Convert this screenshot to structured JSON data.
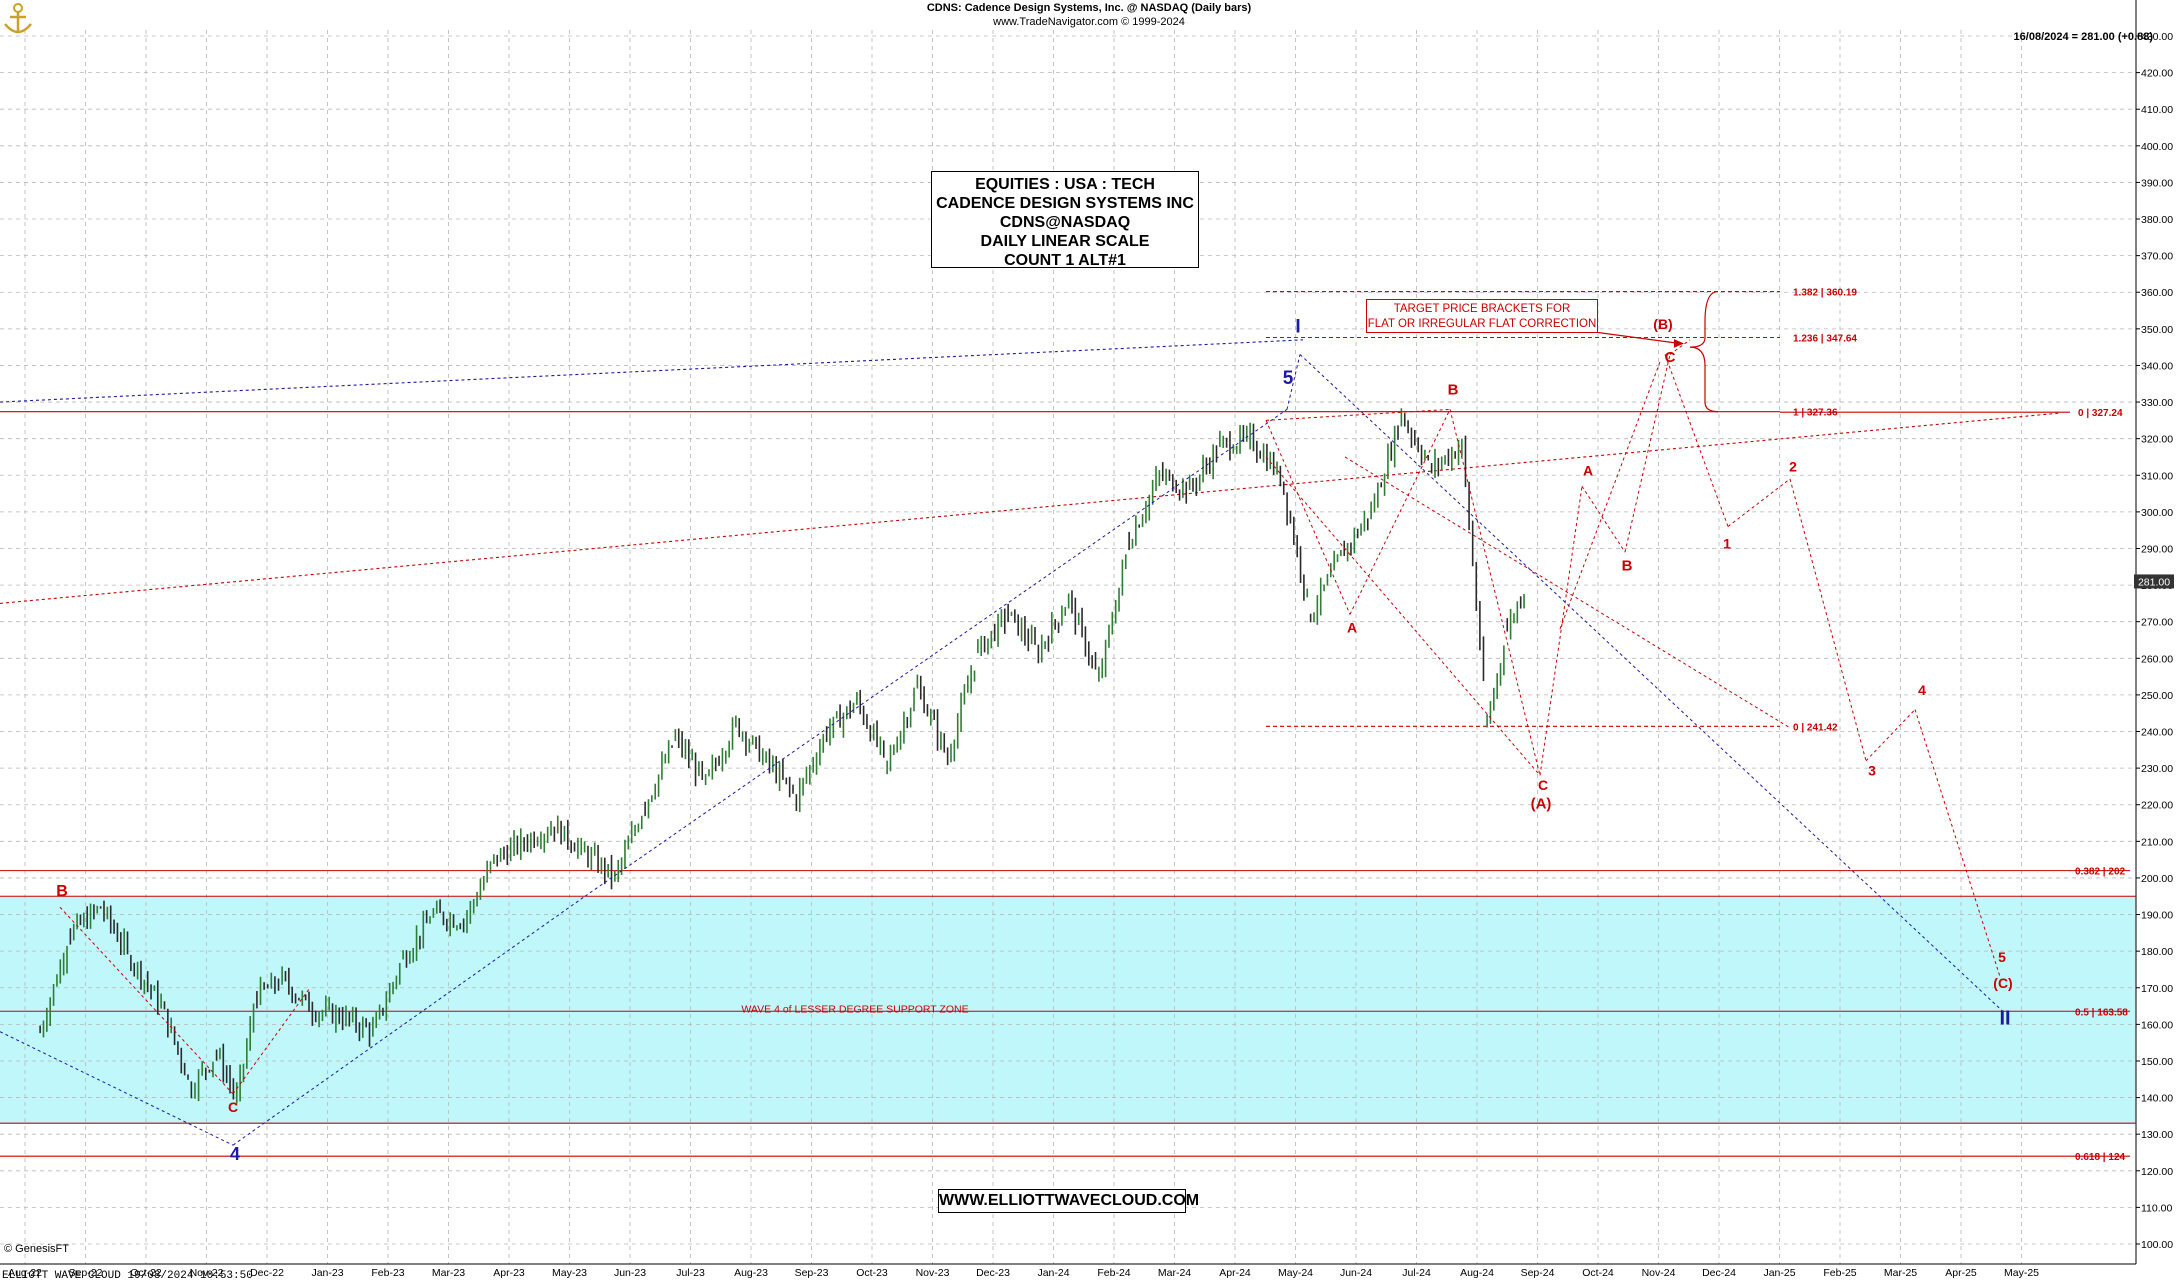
{
  "header": {
    "symbol_line": "CDNS:  Cadence Design Systems, Inc. @ NASDAQ  (Daily bars)",
    "source_line": "www.TradeNavigator.com © 1999-2024"
  },
  "last_price_label": "16/08/2024 = 281.00 (+0.88)",
  "info_box": {
    "line1": "EQUITIES : USA : TECH",
    "line2": "CADENCE DESIGN SYSTEMS INC",
    "line3": "CDNS@NASDAQ",
    "line4": "DAILY LINEAR SCALE",
    "line5": "COUNT 1 ALT#1"
  },
  "target_box": {
    "line1": "TARGET PRICE BRACKETS FOR",
    "line2": "FLAT OR IRREGULAR FLAT CORRECTION"
  },
  "website": "WWW.ELLIOTTWAVECLOUD.COM",
  "footer": "ELLIOTT WAVE CLOUD  19/08/2024 10:53:50",
  "genesis": "© GenesisFT",
  "colors": {
    "zone_fill": "#bff7fb",
    "red": "#cc0000",
    "blue": "#1a1aa6",
    "grid": "#b8b8b8",
    "bull_bar": "#2e7d32",
    "bear_bar": "#2a2a2a"
  },
  "chart_data": {
    "type": "line",
    "title": "CDNS:  Cadence Design Systems, Inc. @ NASDAQ  (Daily bars)",
    "xlabel": "",
    "ylabel": "",
    "ylim": [
      100,
      430
    ],
    "y_ticks": [
      "100.00",
      "110.00",
      "120.00",
      "130.00",
      "140.00",
      "150.00",
      "160.00",
      "170.00",
      "180.00",
      "190.00",
      "200.00",
      "210.00",
      "220.00",
      "230.00",
      "240.00",
      "250.00",
      "260.00",
      "270.00",
      "280.00",
      "290.00",
      "300.00",
      "310.00",
      "320.00",
      "330.00",
      "340.00",
      "350.00",
      "360.00",
      "370.00",
      "380.00",
      "390.00",
      "400.00",
      "410.00",
      "420.00",
      "430.00"
    ],
    "x_ticks": [
      "Aug-22",
      "Sep-22",
      "Oct-22",
      "Nov-22",
      "Dec-22",
      "Jan-23",
      "Feb-23",
      "Mar-23",
      "Apr-23",
      "May-23",
      "Jun-23",
      "Jul-23",
      "Aug-23",
      "Sep-23",
      "Oct-23",
      "Nov-23",
      "Dec-23",
      "Jan-24",
      "Feb-24",
      "Mar-24",
      "Apr-24",
      "May-24",
      "Jun-24",
      "Jul-24",
      "Aug-24",
      "Sep-24",
      "Oct-24",
      "Nov-24",
      "Dec-24",
      "Jan-25",
      "Feb-25",
      "Mar-25",
      "Apr-25",
      "May-25"
    ],
    "grid": true,
    "last_price_tag": "281.00",
    "price_path": [
      [
        "Aug-22",
        158
      ],
      [
        "Aug-22",
        185
      ],
      [
        "Sep-22",
        192
      ],
      [
        "Sep-22",
        178
      ],
      [
        "Oct-22",
        165
      ],
      [
        "Oct-22",
        143
      ],
      [
        "Nov-22",
        152
      ],
      [
        "Nov-22",
        140
      ],
      [
        "Nov-22",
        168
      ],
      [
        "Dec-22",
        172
      ],
      [
        "Dec-22",
        164
      ],
      [
        "Jan-23",
        162
      ],
      [
        "Jan-23",
        158
      ],
      [
        "Feb-23",
        178
      ],
      [
        "Feb-23",
        190
      ],
      [
        "Mar-23",
        188
      ],
      [
        "Mar-23",
        205
      ],
      [
        "Apr-23",
        210
      ],
      [
        "Apr-23",
        214
      ],
      [
        "May-23",
        207
      ],
      [
        "May-23",
        200
      ],
      [
        "Jun-23",
        220
      ],
      [
        "Jun-23",
        238
      ],
      [
        "Jul-23",
        226
      ],
      [
        "Jul-23",
        242
      ],
      [
        "Aug-23",
        232
      ],
      [
        "Aug-23",
        222
      ],
      [
        "Sep-23",
        240
      ],
      [
        "Sep-23",
        248
      ],
      [
        "Oct-23",
        231
      ],
      [
        "Oct-23",
        252
      ],
      [
        "Nov-23",
        233
      ],
      [
        "Nov-23",
        262
      ],
      [
        "Dec-23",
        272
      ],
      [
        "Dec-23",
        262
      ],
      [
        "Jan-24",
        276
      ],
      [
        "Jan-24",
        254
      ],
      [
        "Feb-24",
        292
      ],
      [
        "Feb-24",
        310
      ],
      [
        "Mar-24",
        306
      ],
      [
        "Mar-24",
        318
      ],
      [
        "Apr-24",
        320
      ],
      [
        "Apr-24",
        310
      ],
      [
        "May-24",
        272
      ],
      [
        "May-24",
        288
      ],
      [
        "Jun-24",
        300
      ],
      [
        "Jun-24",
        326
      ],
      [
        "Jul-24",
        312
      ],
      [
        "Jul-24",
        318
      ],
      [
        "Aug-24",
        242
      ],
      [
        "Aug-24",
        268
      ],
      [
        "Aug-24",
        281
      ]
    ],
    "horizontal_levels": [
      {
        "label": "1.382 | 360.19",
        "value": 360.19
      },
      {
        "label": "1.236 | 347.64",
        "value": 347.64
      },
      {
        "label": "1 | 327.36",
        "value": 327.36
      },
      {
        "label": "0 | 327.24",
        "value": 327.24
      },
      {
        "label": "0 | 241.42",
        "value": 241.42
      },
      {
        "label": "0.382 | 202",
        "value": 202
      },
      {
        "label": "0.5 | 163.58",
        "value": 163.58
      },
      {
        "label": "0.618 | 124",
        "value": 124
      }
    ],
    "zone": {
      "label": "WAVE 4 of LESSER DEGREE SUPPORT ZONE",
      "low": 133,
      "high": 195
    },
    "wave_labels": [
      {
        "text": "B",
        "color": "red"
      },
      {
        "text": "C",
        "color": "red"
      },
      {
        "text": "4",
        "color": "blue"
      },
      {
        "text": "5",
        "color": "blue"
      },
      {
        "text": "I",
        "color": "blue"
      },
      {
        "text": "A",
        "color": "red"
      },
      {
        "text": "B",
        "color": "red"
      },
      {
        "text": "C",
        "color": "red"
      },
      {
        "text": "(A)",
        "color": "red"
      },
      {
        "text": "A",
        "color": "red"
      },
      {
        "text": "B",
        "color": "red"
      },
      {
        "text": "(B)",
        "color": "red"
      },
      {
        "text": "C",
        "color": "red"
      },
      {
        "text": "1",
        "color": "red"
      },
      {
        "text": "2",
        "color": "red"
      },
      {
        "text": "3",
        "color": "red"
      },
      {
        "text": "4",
        "color": "red"
      },
      {
        "text": "5",
        "color": "red"
      },
      {
        "text": "(C)",
        "color": "red"
      },
      {
        "text": "II",
        "color": "blue"
      }
    ]
  }
}
